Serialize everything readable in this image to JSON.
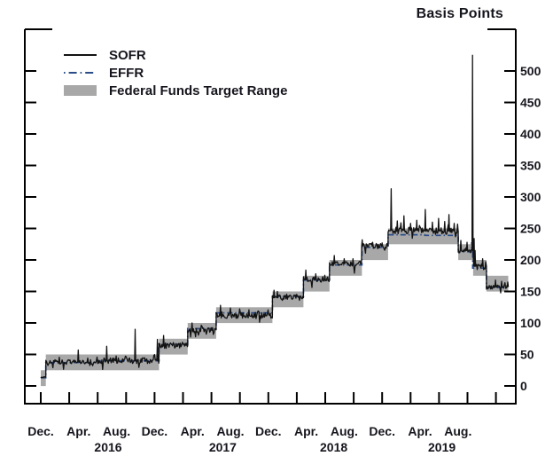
{
  "colors": {
    "sofr": "#131313",
    "effr": "#2a4d89",
    "range": "#a8a8a8",
    "axis": "#000000",
    "text": "#15151d"
  },
  "legend": {
    "sofr": "SOFR",
    "effr": "EFFR",
    "range": "Federal Funds Target Range"
  },
  "chart_data": {
    "type": "line",
    "title": "Basis Points",
    "m_definition": "m = months since 2015-12-01",
    "y_axis": {
      "unit": "basis points",
      "ticks": [
        0,
        50,
        100,
        150,
        200,
        250,
        300,
        350,
        400,
        450,
        500
      ],
      "range_bp": [
        0,
        565
      ],
      "labels_side": "right",
      "grid": false
    },
    "x_axis": {
      "start": "2015-12",
      "end": "2019-12",
      "quarterly_ticks": {
        "first_m": 0,
        "step_m": 3,
        "count": 17
      },
      "month_tick_labels": [
        {
          "m": 0,
          "label": "Dec."
        },
        {
          "m": 4,
          "label": "Apr."
        },
        {
          "m": 8,
          "label": "Aug."
        },
        {
          "m": 12,
          "label": "Dec."
        },
        {
          "m": 16,
          "label": "Apr."
        },
        {
          "m": 20,
          "label": "Aug."
        },
        {
          "m": 24,
          "label": "Dec."
        },
        {
          "m": 28,
          "label": "Apr."
        },
        {
          "m": 32,
          "label": "Aug."
        },
        {
          "m": 36,
          "label": "Dec."
        },
        {
          "m": 40,
          "label": "Apr."
        },
        {
          "m": 44,
          "label": "Aug."
        }
      ],
      "year_labels": [
        {
          "m": 7.1,
          "label": "2016"
        },
        {
          "m": 19.2,
          "label": "2017"
        },
        {
          "m": 30.9,
          "label": "2018"
        },
        {
          "m": 42.3,
          "label": "2019"
        }
      ]
    },
    "series": [
      {
        "name": "SOFR",
        "style": "solid",
        "segments_m0_m1_bp_noise": [
          [
            0,
            0.53,
            14,
            2
          ],
          [
            0.53,
            6,
            38,
            4
          ],
          [
            6,
            12.47,
            40,
            5
          ],
          [
            12.47,
            15.5,
            64,
            5
          ],
          [
            15.5,
            18.5,
            89,
            5
          ],
          [
            18.5,
            24.43,
            112,
            6
          ],
          [
            24.43,
            27.7,
            140,
            5
          ],
          [
            27.7,
            30.45,
            169,
            5
          ],
          [
            30.45,
            33.87,
            194,
            5
          ],
          [
            33.87,
            36.63,
            222,
            5
          ],
          [
            36.63,
            40.5,
            247,
            6
          ],
          [
            40.5,
            44.03,
            246,
            6
          ],
          [
            44.03,
            45.5,
            215,
            5
          ],
          [
            45.65,
            47.0,
            190,
            6
          ],
          [
            47.0,
            49.3,
            157,
            4
          ]
        ],
        "spikes_m_bp": [
          [
            3.95,
            57
          ],
          [
            6.95,
            63
          ],
          [
            9.95,
            90
          ],
          [
            12.3,
            74
          ],
          [
            12.95,
            80
          ],
          [
            15.95,
            100
          ],
          [
            18.95,
            128
          ],
          [
            21.95,
            121
          ],
          [
            24.6,
            152
          ],
          [
            24.95,
            150
          ],
          [
            27.95,
            184
          ],
          [
            29.0,
            178
          ],
          [
            30.95,
            207
          ],
          [
            32.0,
            202
          ],
          [
            33.9,
            232
          ],
          [
            35.0,
            228
          ],
          [
            36.0,
            227
          ],
          [
            36.95,
            313
          ],
          [
            37.6,
            262
          ],
          [
            38.3,
            270
          ],
          [
            39.0,
            258
          ],
          [
            39.65,
            263
          ],
          [
            40.55,
            280
          ],
          [
            41.3,
            260
          ],
          [
            41.95,
            266
          ],
          [
            42.6,
            261
          ],
          [
            43.05,
            272
          ],
          [
            43.6,
            258
          ],
          [
            44.3,
            231
          ],
          [
            44.95,
            228
          ],
          [
            45.53,
            525
          ],
          [
            45.7,
            234
          ],
          [
            45.8,
            215
          ],
          [
            46.6,
            202
          ],
          [
            47.95,
            168
          ],
          [
            48.6,
            166
          ],
          [
            49.25,
            165
          ]
        ]
      },
      {
        "name": "EFFR",
        "style": "dash-dot",
        "segments_m0_m1_bp": [
          [
            0,
            0.53,
            13
          ],
          [
            0.53,
            6,
            37
          ],
          [
            6,
            12.47,
            40
          ],
          [
            12.47,
            15.5,
            66
          ],
          [
            15.5,
            18.5,
            91
          ],
          [
            18.5,
            24.43,
            116
          ],
          [
            24.43,
            27.7,
            142
          ],
          [
            27.7,
            30.45,
            168
          ],
          [
            30.45,
            33.87,
            192
          ],
          [
            33.87,
            36.63,
            220
          ],
          [
            36.63,
            40.5,
            240
          ],
          [
            40.5,
            44.03,
            239
          ],
          [
            44.03,
            45.45,
            213
          ],
          [
            45.45,
            45.55,
            227
          ],
          [
            45.55,
            47.0,
            187
          ],
          [
            47.0,
            49.3,
            156
          ]
        ]
      },
      {
        "name": "Federal Funds Target Range",
        "style": "band",
        "steps": [
          {
            "start": "2015-12-01",
            "m0": 0,
            "m1": 0.53,
            "low": 0,
            "high": 25
          },
          {
            "start": "2015-12-17",
            "m0": 0.53,
            "m1": 12.47,
            "low": 25,
            "high": 50
          },
          {
            "start": "2016-12-15",
            "m0": 12.47,
            "m1": 15.5,
            "low": 50,
            "high": 75
          },
          {
            "start": "2017-03-16",
            "m0": 15.5,
            "m1": 18.5,
            "low": 75,
            "high": 100
          },
          {
            "start": "2017-06-15",
            "m0": 18.5,
            "m1": 24.43,
            "low": 100,
            "high": 125
          },
          {
            "start": "2017-12-14",
            "m0": 24.43,
            "m1": 27.7,
            "low": 125,
            "high": 150
          },
          {
            "start": "2018-03-22",
            "m0": 27.7,
            "m1": 30.45,
            "low": 150,
            "high": 175
          },
          {
            "start": "2018-06-14",
            "m0": 30.45,
            "m1": 33.87,
            "low": 175,
            "high": 200
          },
          {
            "start": "2018-09-27",
            "m0": 33.87,
            "m1": 36.63,
            "low": 200,
            "high": 225
          },
          {
            "start": "2018-12-20",
            "m0": 36.63,
            "m1": 44.03,
            "low": 225,
            "high": 250
          },
          {
            "start": "2019-08-01",
            "m0": 44.03,
            "m1": 45.6,
            "low": 200,
            "high": 225
          },
          {
            "start": "2019-09-19",
            "m0": 45.6,
            "m1": 47.0,
            "low": 175,
            "high": 200
          },
          {
            "start": "2019-10-31",
            "m0": 47.0,
            "m1": 49.3,
            "low": 150,
            "high": 175
          }
        ]
      }
    ]
  }
}
